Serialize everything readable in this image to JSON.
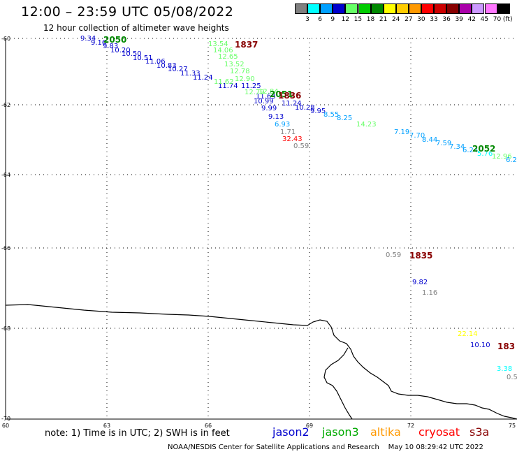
{
  "header": {
    "title": "12:00 – 23:59 UTC 05/08/2022",
    "subtitle": "12 hour collection of altimeter wave heights"
  },
  "legend": {
    "unit": "(ft)",
    "entries": [
      {
        "label": "3",
        "color": "#808080"
      },
      {
        "label": "6",
        "color": "#00ffff"
      },
      {
        "label": "9",
        "color": "#00a0ff"
      },
      {
        "label": "12",
        "color": "#0000cd"
      },
      {
        "label": "15",
        "color": "#66ff66"
      },
      {
        "label": "18",
        "color": "#00cc00"
      },
      {
        "label": "21",
        "color": "#008800"
      },
      {
        "label": "24",
        "color": "#ffff00"
      },
      {
        "label": "27",
        "color": "#ffcc00"
      },
      {
        "label": "30",
        "color": "#ff9900"
      },
      {
        "label": "33",
        "color": "#ff0000"
      },
      {
        "label": "36",
        "color": "#cc0000"
      },
      {
        "label": "39",
        "color": "#880000"
      },
      {
        "label": "42",
        "color": "#aa00aa"
      },
      {
        "label": "45",
        "color": "#cc99ff"
      },
      {
        "label": "70",
        "color": "#ff77ff"
      },
      {
        "label": "",
        "color": "#000000"
      }
    ]
  },
  "axes": {
    "lat_ticks": [
      "-60",
      "-62",
      "-64",
      "-66",
      "-68",
      "-70"
    ],
    "lon_ticks": [
      "60",
      "63",
      "66",
      "69",
      "72",
      "75"
    ]
  },
  "time_labels": [
    {
      "text": "2050",
      "color": "#008800"
    },
    {
      "text": "1837",
      "color": "#880000"
    },
    {
      "text": "2051",
      "color": "#008800"
    },
    {
      "text": "1836",
      "color": "#880000"
    },
    {
      "text": "2052",
      "color": "#008800"
    },
    {
      "text": "1835",
      "color": "#880000"
    },
    {
      "text": "183",
      "color": "#880000"
    }
  ],
  "observations": [
    {
      "text": "9.34",
      "color": "#0000cd"
    },
    {
      "text": "9.16",
      "color": "#0000cd"
    },
    {
      "text": "9.83",
      "color": "#0000cd"
    },
    {
      "text": "10.20",
      "color": "#0000cd"
    },
    {
      "text": "10.50",
      "color": "#0000cd"
    },
    {
      "text": "10.51",
      "color": "#0000cd"
    },
    {
      "text": "11.06",
      "color": "#0000cd"
    },
    {
      "text": "10.83",
      "color": "#0000cd"
    },
    {
      "text": "10.27",
      "color": "#0000cd"
    },
    {
      "text": "11.33",
      "color": "#0000cd"
    },
    {
      "text": "11.24",
      "color": "#0000cd"
    },
    {
      "text": "11.74",
      "color": "#0000cd"
    },
    {
      "text": "11.25",
      "color": "#0000cd"
    },
    {
      "text": "11.63",
      "color": "#0000cd"
    },
    {
      "text": "10.99",
      "color": "#0000cd"
    },
    {
      "text": "9.99",
      "color": "#0000cd"
    },
    {
      "text": "9.13",
      "color": "#0000cd"
    },
    {
      "text": "11.24",
      "color": "#0000cd"
    },
    {
      "text": "10.28",
      "color": "#0000cd"
    },
    {
      "text": "9.95",
      "color": "#0000cd"
    },
    {
      "text": "9.82",
      "color": "#0000cd"
    },
    {
      "text": "10.10",
      "color": "#0000cd"
    },
    {
      "text": "13.54",
      "color": "#66ff66"
    },
    {
      "text": "14.06",
      "color": "#66ff66"
    },
    {
      "text": "12.65",
      "color": "#66ff66"
    },
    {
      "text": "13.52",
      "color": "#66ff66"
    },
    {
      "text": "12.78",
      "color": "#66ff66"
    },
    {
      "text": "12.90",
      "color": "#66ff66"
    },
    {
      "text": "11.62",
      "color": "#66ff66"
    },
    {
      "text": "12.79",
      "color": "#66ff66"
    },
    {
      "text": "12.84",
      "color": "#66ff66"
    },
    {
      "text": "14.23",
      "color": "#66ff66"
    },
    {
      "text": "12.96",
      "color": "#66ff66"
    },
    {
      "text": "6.93",
      "color": "#00a0ff"
    },
    {
      "text": "8.55",
      "color": "#00a0ff"
    },
    {
      "text": "8.25",
      "color": "#00a0ff"
    },
    {
      "text": "7.19",
      "color": "#00a0ff"
    },
    {
      "text": "7.70",
      "color": "#00a0ff"
    },
    {
      "text": "8.44",
      "color": "#00a0ff"
    },
    {
      "text": "7.59",
      "color": "#00a0ff"
    },
    {
      "text": "7.34",
      "color": "#00a0ff"
    },
    {
      "text": "6.24",
      "color": "#00a0ff"
    },
    {
      "text": "5.76",
      "color": "#00ffff"
    },
    {
      "text": "6.2",
      "color": "#00a0ff"
    },
    {
      "text": "3.38",
      "color": "#00ffff"
    },
    {
      "text": "1.71",
      "color": "#808080"
    },
    {
      "text": "0.59",
      "color": "#808080"
    },
    {
      "text": "0.59",
      "color": "#808080"
    },
    {
      "text": "1.16",
      "color": "#808080"
    },
    {
      "text": "0.5",
      "color": "#808080"
    },
    {
      "text": "32.43",
      "color": "#ff0000"
    },
    {
      "text": "22.14",
      "color": "#ffff00"
    }
  ],
  "footer": {
    "note": "note: 1) Time is in UTC; 2) SWH is in feet",
    "satellites": [
      {
        "name": "jason2",
        "color": "#0000cd"
      },
      {
        "name": "jason3",
        "color": "#00aa00"
      },
      {
        "name": "altika",
        "color": "#ff9900"
      },
      {
        "name": "cryosat",
        "color": "#ff0000"
      },
      {
        "name": "s3a",
        "color": "#880000"
      }
    ],
    "credit": "NOAA/NESDIS Center for Satellite Applications and Research",
    "timestamp": "May 10 08:29:42 UTC 2022"
  }
}
